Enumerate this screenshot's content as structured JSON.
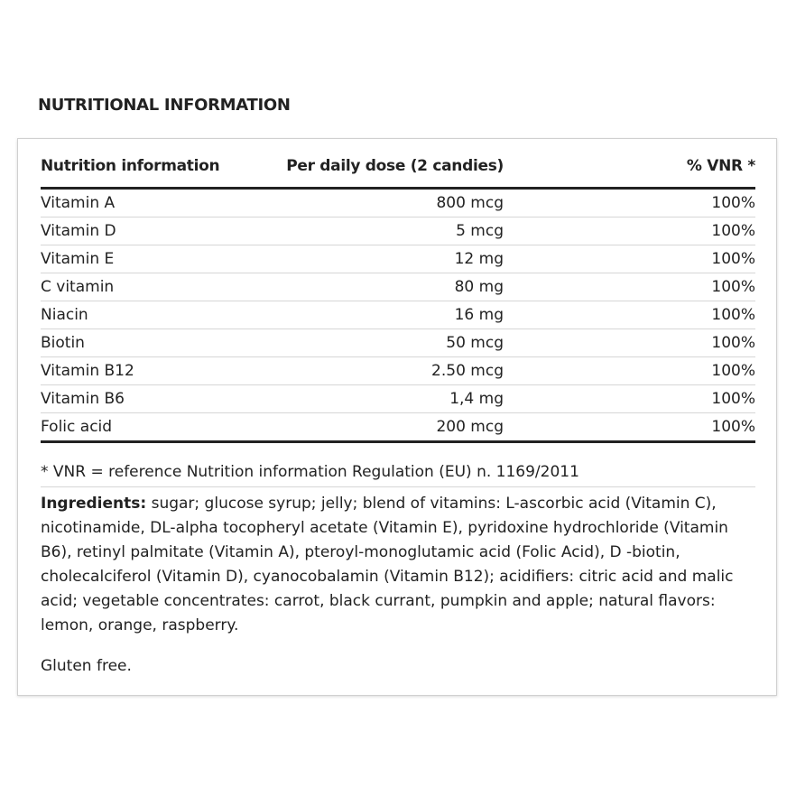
{
  "header": {
    "title": "NUTRITIONAL INFORMATION"
  },
  "table": {
    "columns": [
      "Nutrition information",
      "Per daily dose (2 candies)",
      "% VNR *"
    ],
    "rows": [
      [
        "Vitamin A",
        "800 mcg",
        "100%"
      ],
      [
        "Vitamin D",
        "5 mcg",
        "100%"
      ],
      [
        "Vitamin E",
        "12 mg",
        "100%"
      ],
      [
        "C vitamin",
        "80 mg",
        "100%"
      ],
      [
        "Niacin",
        "16 mg",
        "100%"
      ],
      [
        "Biotin",
        "50 mcg",
        "100%"
      ],
      [
        "Vitamin B12",
        "2.50 mcg",
        "100%"
      ],
      [
        "Vitamin B6",
        "1,4 mg",
        "100%"
      ],
      [
        "Folic acid",
        "200 mcg",
        "100%"
      ]
    ]
  },
  "footnote": "* VNR = reference Nutrition information Regulation (EU) n. 1169/2011",
  "ingredients": {
    "label": "Ingredients:",
    "text": "sugar; glucose syrup; jelly; blend of vitamins: L-ascorbic acid (Vitamin C), nicotinamide, DL-alpha tocopheryl acetate (Vitamin E), pyridoxine hydrochloride (Vitamin B6), retinyl palmitate (Vitamin A), pteroyl-monoglutamic acid (Folic Acid), D -biotin, cholecalciferol (Vitamin D), cyanocobalamin (Vitamin B12); acidifiers: citric acid and malic acid; vegetable concentrates: carrot, black currant, pumpkin and apple; natural flavors: lemon, orange, raspberry."
  },
  "note": "Gluten free."
}
